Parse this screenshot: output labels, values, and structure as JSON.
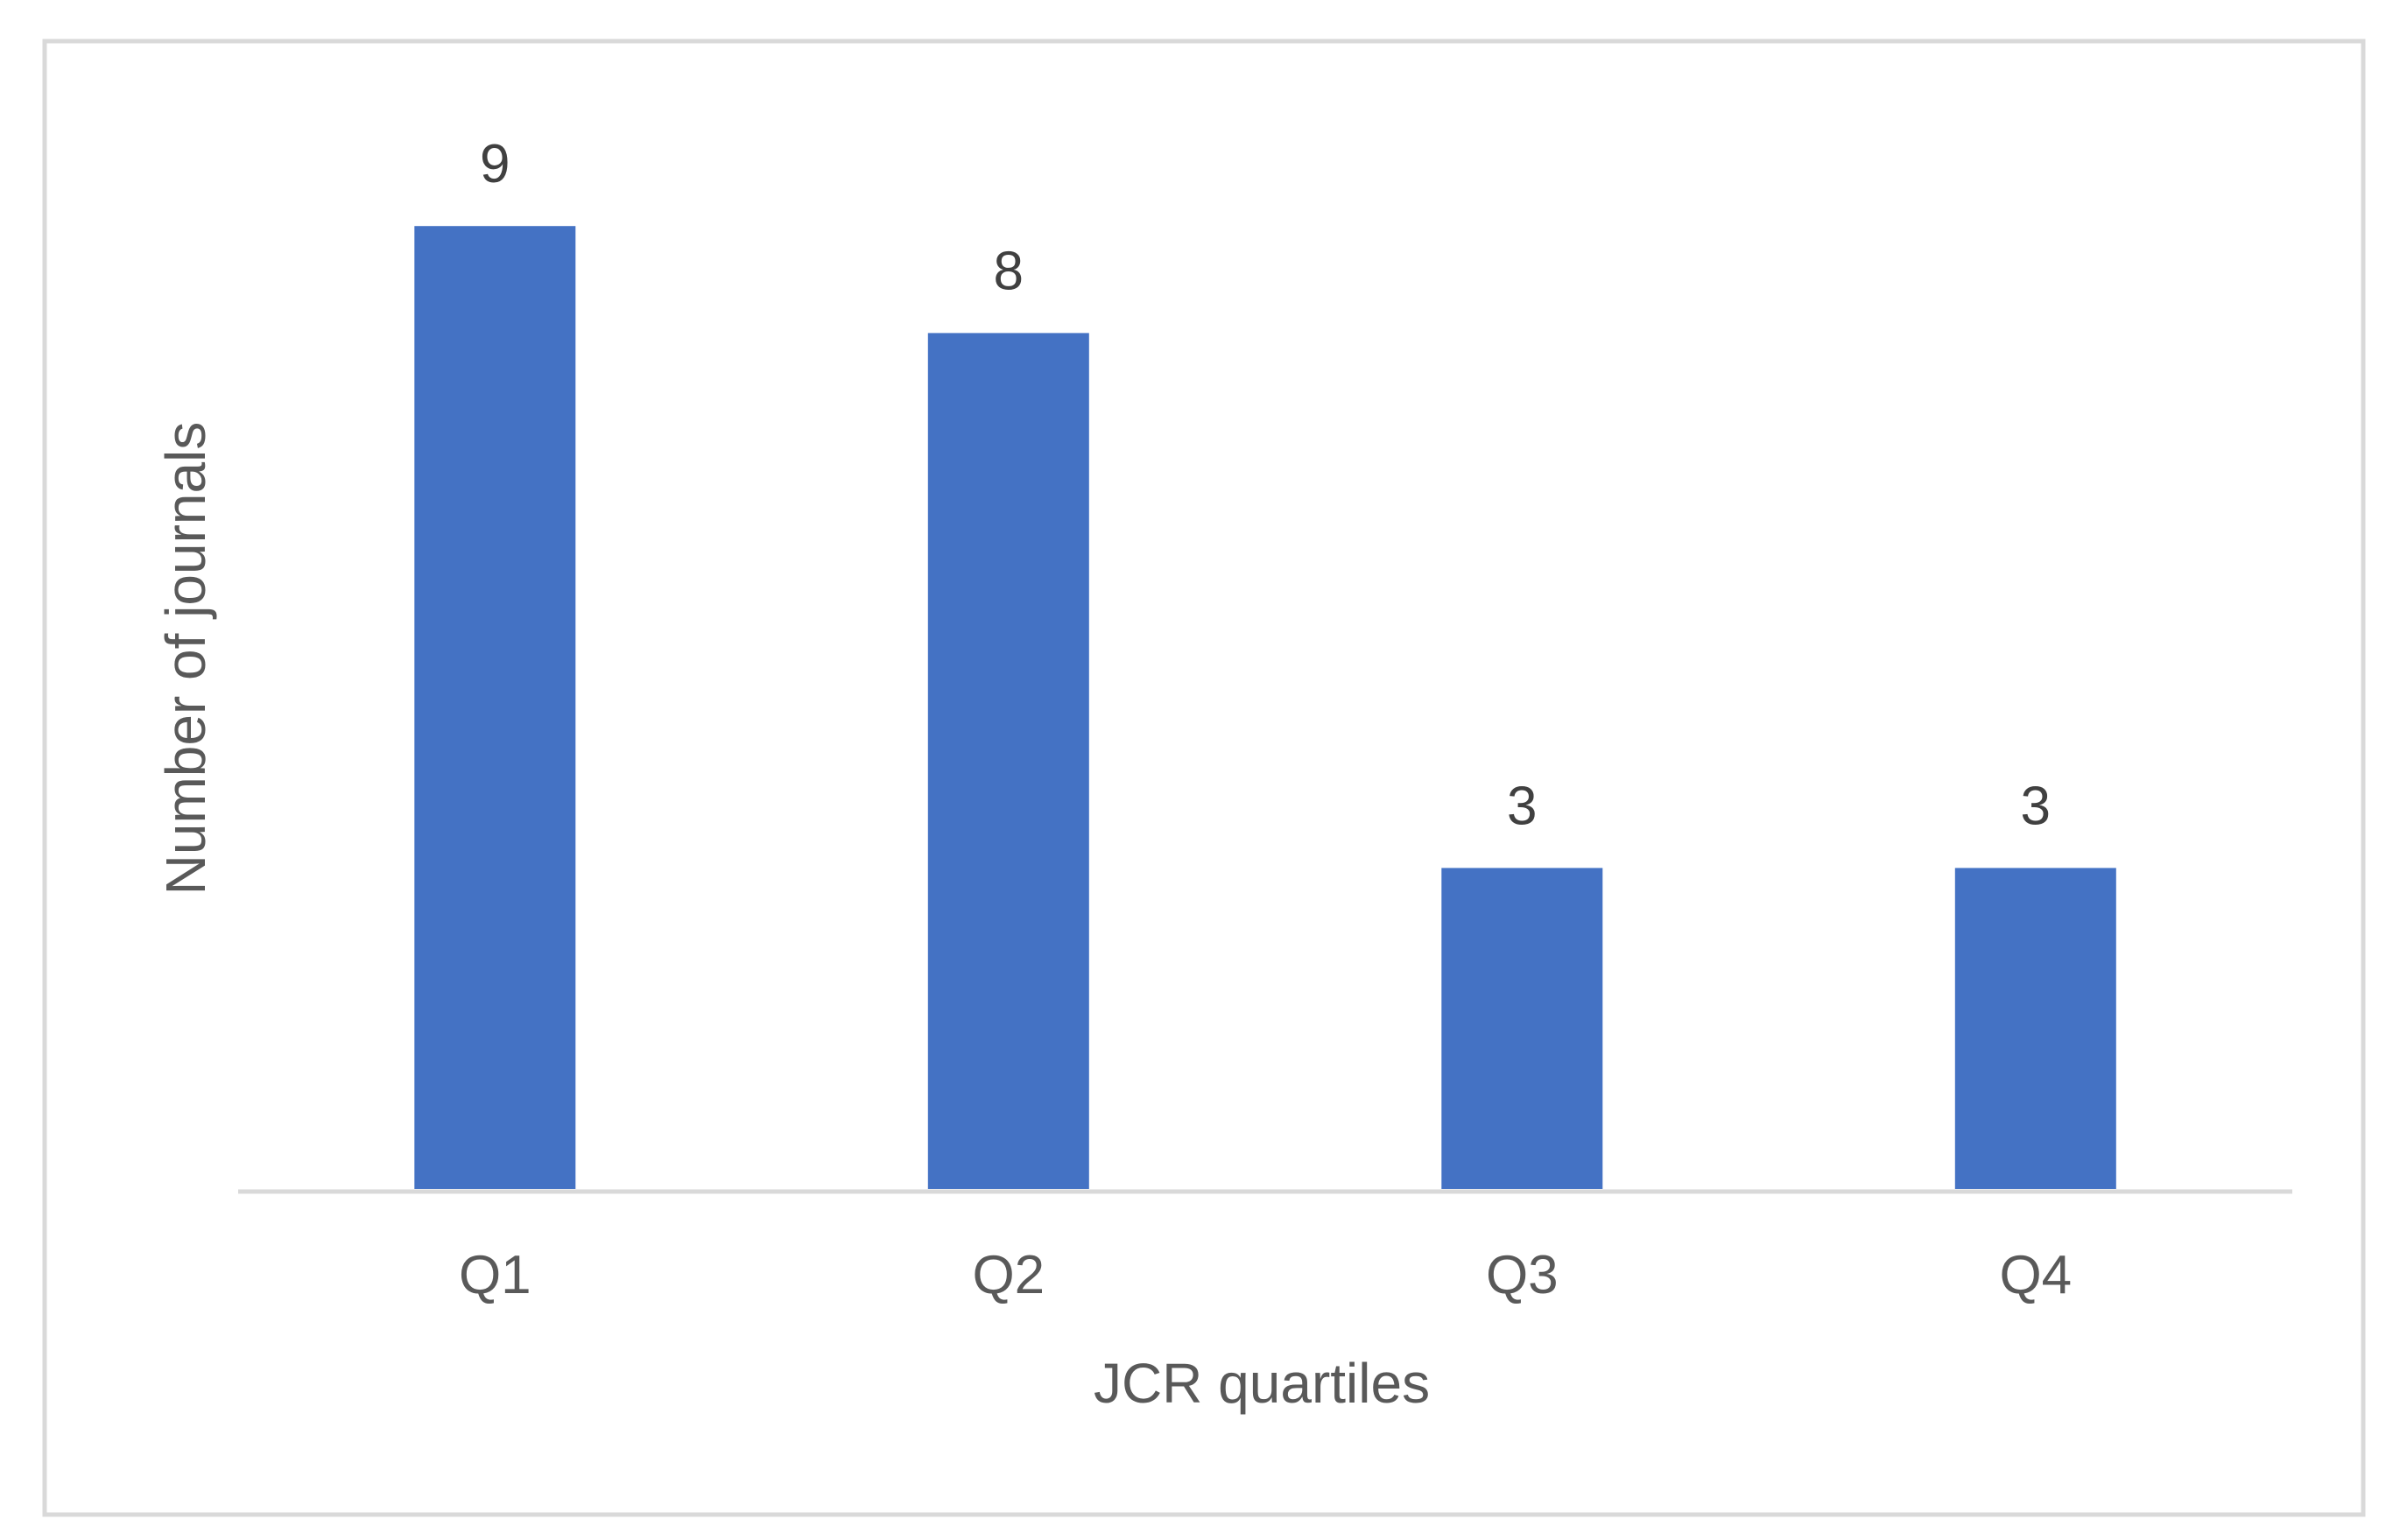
{
  "chart_data": {
    "type": "bar",
    "categories": [
      "Q1",
      "Q2",
      "Q3",
      "Q4"
    ],
    "values": [
      9,
      8,
      3,
      3
    ],
    "data_labels": [
      "9",
      "8",
      "3",
      "3"
    ],
    "title": "",
    "xlabel": "JCR quartiles",
    "ylabel": "Number of journals",
    "ylim": [
      0,
      9
    ],
    "grid": false,
    "legend": "none",
    "bar_color": "#4472C4",
    "axis_line_color": "#D9D9D9",
    "frame_color": "#D9D9D9",
    "text_color": "#595959",
    "label_color": "#404040"
  }
}
